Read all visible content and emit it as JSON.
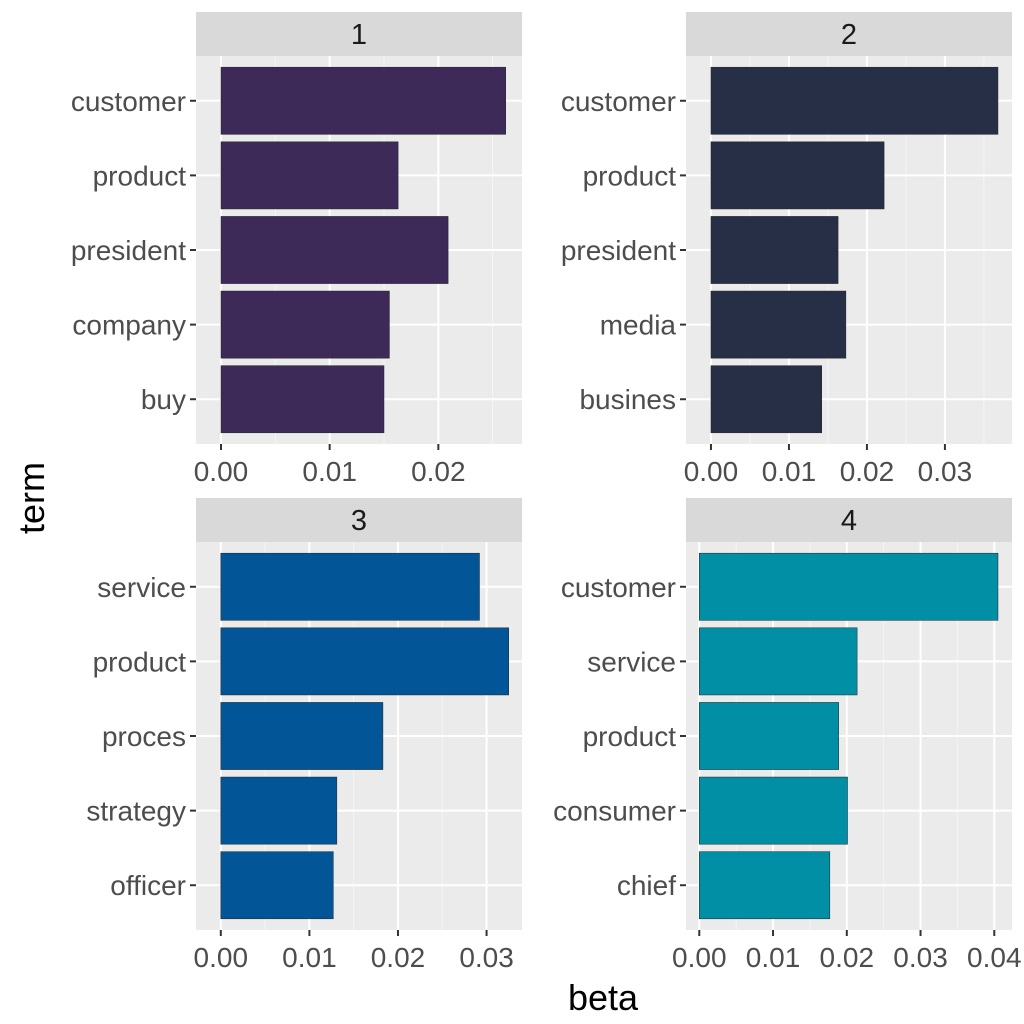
{
  "chart_data": {
    "type": "bar",
    "orientation": "horizontal",
    "faceted": true,
    "xlabel": "beta",
    "ylabel": "term",
    "grid": true,
    "panels": [
      {
        "label": "1",
        "color": "#3D2A58",
        "terms": [
          "customer",
          "product",
          "president",
          "company",
          "buy"
        ],
        "values": [
          0.0262,
          0.0163,
          0.0209,
          0.0155,
          0.015
        ],
        "xlim": [
          -0.0023,
          0.0277
        ],
        "xticks": [
          "0.00",
          "0.01",
          "0.02"
        ]
      },
      {
        "label": "2",
        "color": "#262F45",
        "terms": [
          "customer",
          "product",
          "president",
          "media",
          "busines"
        ],
        "values": [
          0.0368,
          0.0222,
          0.0163,
          0.0173,
          0.0142
        ],
        "xlim": [
          -0.0032,
          0.0386
        ],
        "xticks": [
          "0.00",
          "0.01",
          "0.02",
          "0.03"
        ]
      },
      {
        "label": "3",
        "color": "#025596",
        "terms": [
          "service",
          "product",
          "proces",
          "strategy",
          "officer"
        ],
        "values": [
          0.0292,
          0.0325,
          0.0183,
          0.0131,
          0.0127
        ],
        "xlim": [
          -0.0028,
          0.034
        ],
        "xticks": [
          "0.00",
          "0.01",
          "0.02",
          "0.03"
        ]
      },
      {
        "label": "4",
        "color": "#008FA4",
        "terms": [
          "customer",
          "service",
          "product",
          "consumer",
          "chief"
        ],
        "values": [
          0.0405,
          0.0214,
          0.0189,
          0.0201,
          0.0177
        ],
        "xlim": [
          -0.0018,
          0.0424
        ],
        "xticks": [
          "0.00",
          "0.01",
          "0.02",
          "0.03",
          "0.04"
        ]
      }
    ]
  }
}
